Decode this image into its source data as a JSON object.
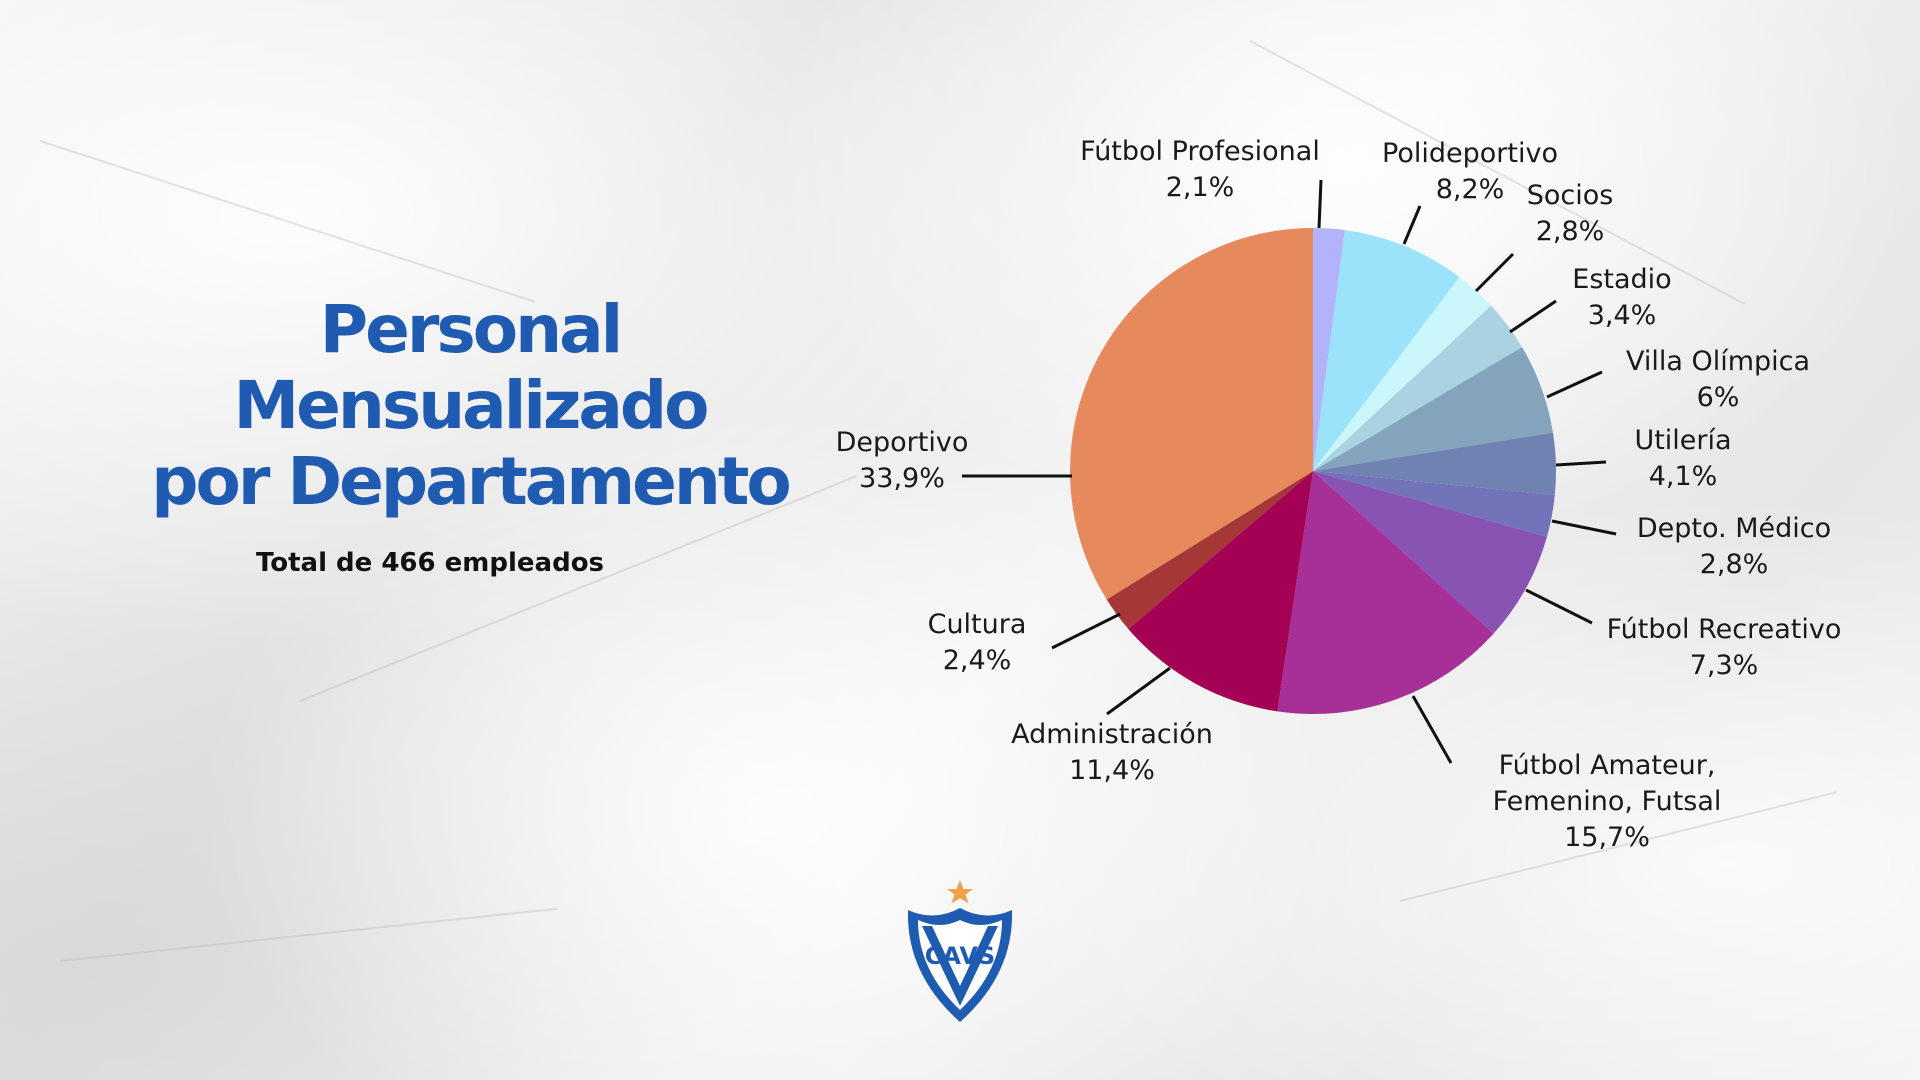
{
  "header": {
    "title_lines": [
      "Personal",
      "Mensualizado",
      "por Departamento"
    ],
    "subtitle": "Total de 466 empleados"
  },
  "colors": {
    "title": "#1f5bb0",
    "shield_blue": "#1f5bb0",
    "star": "#f0a04b"
  },
  "chart_data": {
    "type": "pie",
    "title": "Personal Mensualizado por Departamento",
    "total_label": "Total de 466 empleados",
    "start": "12 o'clock, clockwise",
    "slices": [
      {
        "label": [
          "Fútbol Profesional"
        ],
        "value": 2.1,
        "value_label": "2,1%",
        "color": "#b3b3fb"
      },
      {
        "label": [
          "Polideportivo"
        ],
        "value": 8.2,
        "value_label": "8,2%",
        "color": "#9be3fb"
      },
      {
        "label": [
          "Socios"
        ],
        "value": 2.8,
        "value_label": "2,8%",
        "color": "#c9f7fb"
      },
      {
        "label": [
          "Estadio"
        ],
        "value": 3.4,
        "value_label": "3,4%",
        "color": "#a9d3e1"
      },
      {
        "label": [
          "Villa Olímpica"
        ],
        "value": 6.0,
        "value_label": "6%",
        "color": "#84a4be"
      },
      {
        "label": [
          "Utilería"
        ],
        "value": 4.1,
        "value_label": "4,1%",
        "color": "#6f82b1"
      },
      {
        "label": [
          "Depto. Médico"
        ],
        "value": 2.8,
        "value_label": "2,8%",
        "color": "#7373b9"
      },
      {
        "label": [
          "Fútbol Recreativo"
        ],
        "value": 7.3,
        "value_label": "7,3%",
        "color": "#8853b2"
      },
      {
        "label": [
          "Fútbol Amateur,",
          "Femenino, Futsal"
        ],
        "value": 15.7,
        "value_label": "15,7%",
        "color": "#a62f98"
      },
      {
        "label": [
          "Administración"
        ],
        "value": 11.4,
        "value_label": "11,4%",
        "color": "#a40155"
      },
      {
        "label": [
          "Cultura"
        ],
        "value": 2.4,
        "value_label": "2,4%",
        "color": "#a63737"
      },
      {
        "label": [
          "Deportivo"
        ],
        "value": 33.9,
        "value_label": "33,9%",
        "color": "#e68a5e"
      }
    ]
  },
  "logo": {
    "name": "club-shield-logo",
    "text": "CAVS"
  }
}
